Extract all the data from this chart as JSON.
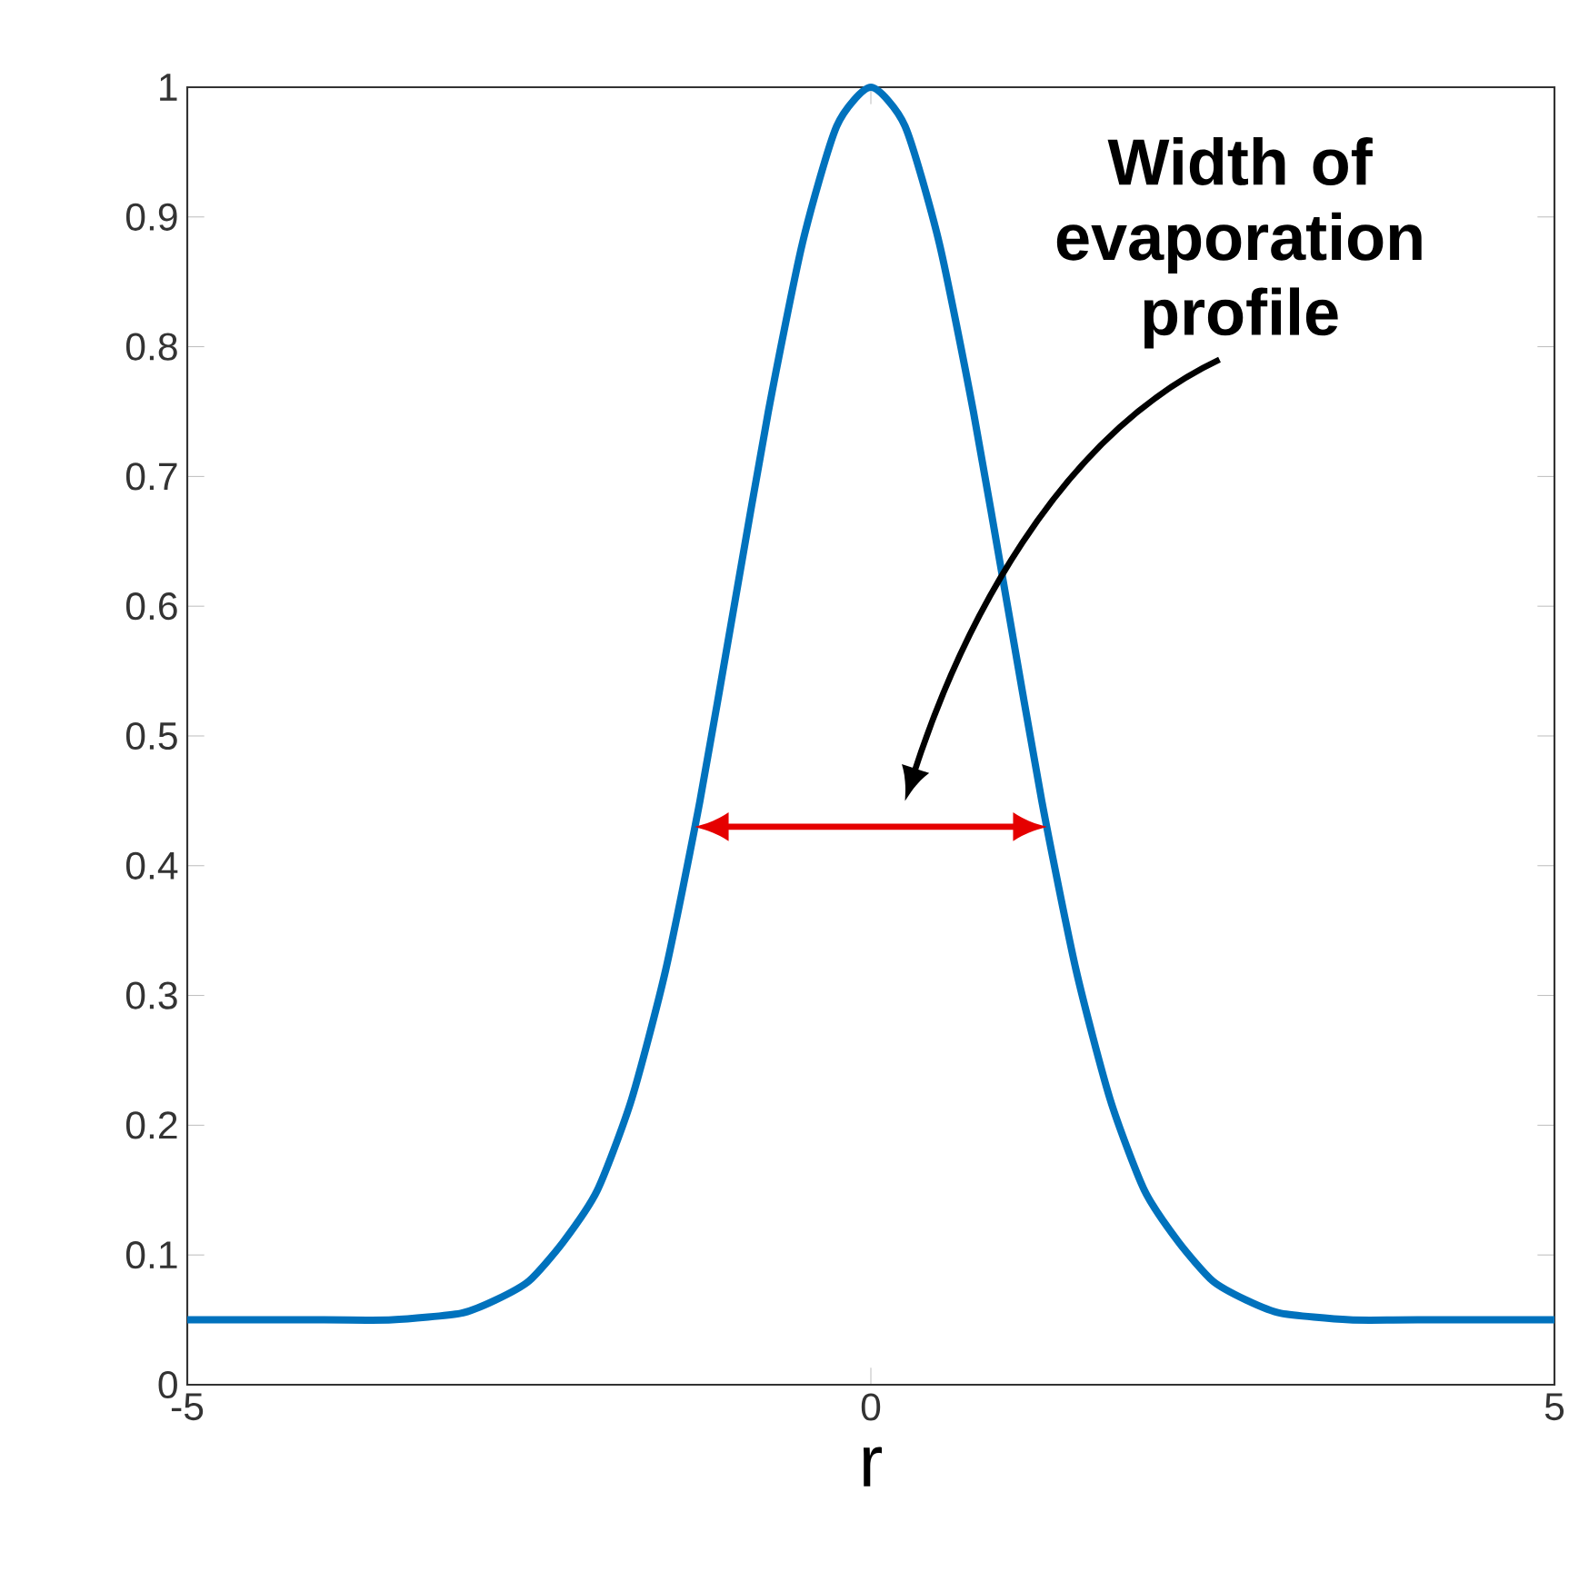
{
  "chart_data": {
    "type": "line",
    "xlabel": "r",
    "x": [
      -5,
      -4,
      -3.5,
      -3,
      -2.75,
      -2.5,
      -2.25,
      -2,
      -1.75,
      -1.5,
      -1.25,
      -1,
      -0.75,
      -0.5,
      -0.25,
      0,
      0.25,
      0.5,
      0.75,
      1,
      1.25,
      1.5,
      1.75,
      2,
      2.25,
      2.5,
      2.75,
      3,
      3.5,
      4,
      5
    ],
    "series": [
      {
        "color": "#0072bd",
        "values": [
          0.05,
          0.05,
          0.05,
          0.055,
          0.065,
          0.08,
          0.11,
          0.15,
          0.22,
          0.32,
          0.45,
          0.6,
          0.75,
          0.88,
          0.97,
          1,
          0.97,
          0.88,
          0.75,
          0.6,
          0.45,
          0.32,
          0.22,
          0.15,
          0.11,
          0.08,
          0.065,
          0.055,
          0.05,
          0.05,
          0.05
        ]
      }
    ],
    "xlim": [
      -5,
      5
    ],
    "xticks": [
      -5,
      0,
      5
    ],
    "ylim": [
      0,
      1
    ],
    "yticks": [
      0,
      0.1,
      0.2,
      0.3,
      0.4,
      0.5,
      0.6,
      0.7,
      0.8,
      0.9,
      1
    ],
    "marker": "none",
    "line_style": "solid",
    "annotations": [
      "Width of evaporation profile"
    ]
  }
}
